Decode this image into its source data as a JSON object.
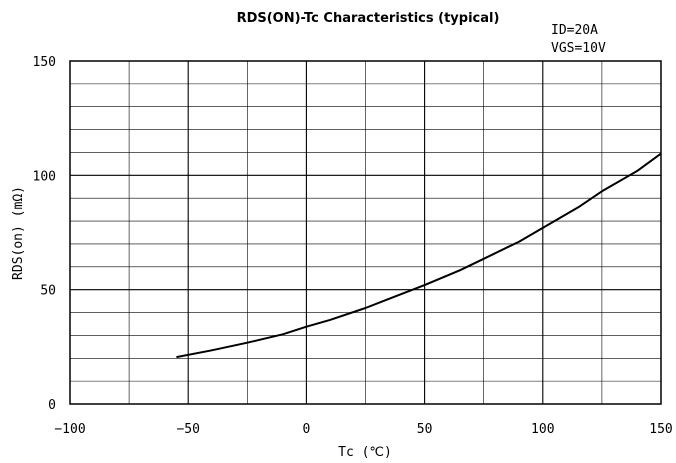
{
  "chart_data": {
    "type": "line",
    "title": "RDS(ON)-Tc Characteristics (typical)",
    "conditions": [
      "ID=20A",
      "VGS=10V"
    ],
    "xlabel": "Tc (℃)",
    "ylabel": "RDS(on) (mΩ)",
    "xlim": [
      -100,
      150
    ],
    "ylim": [
      0,
      150
    ],
    "x_ticks": [
      -100,
      -50,
      0,
      50,
      100,
      150
    ],
    "x_tick_labels": [
      "−100",
      "−50",
      "0",
      "50",
      "100",
      "150"
    ],
    "y_ticks": [
      0,
      50,
      100,
      150
    ],
    "y_tick_labels": [
      "0",
      "50",
      "100",
      "150"
    ],
    "x_minor_step": 25,
    "y_minor_step": 10,
    "grid": true,
    "series": [
      {
        "x": [
          -55,
          -40,
          -25,
          -10,
          0,
          10,
          25,
          40,
          50,
          65,
          75,
          90,
          100,
          115,
          125,
          140,
          150
        ],
        "values": [
          20.5,
          23.5,
          26.8,
          30.5,
          33.8,
          36.8,
          42,
          48,
          52,
          58.5,
          63.5,
          71,
          77,
          86,
          93,
          102,
          109.5
        ]
      }
    ]
  }
}
